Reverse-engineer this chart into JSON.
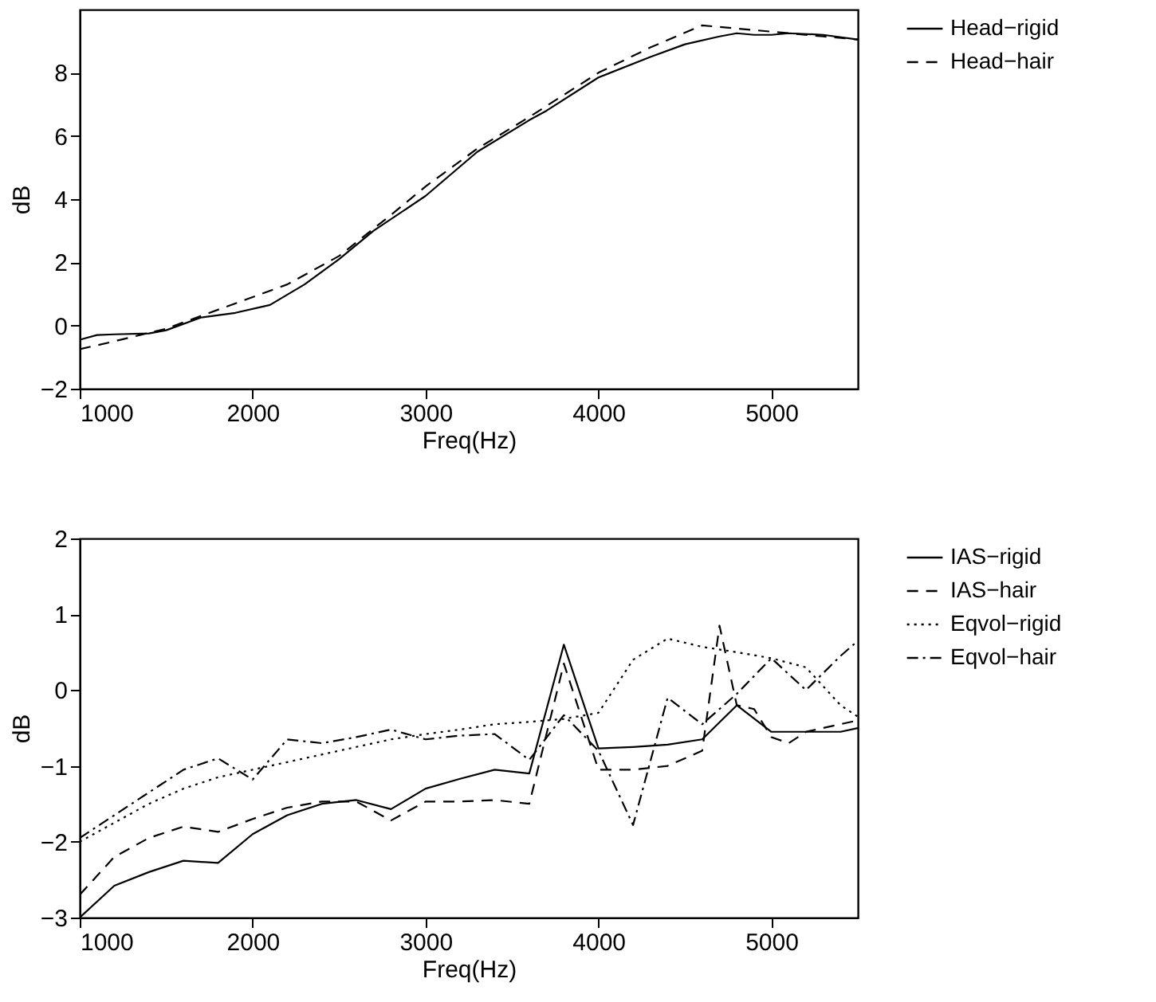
{
  "chart_data": [
    {
      "type": "line",
      "xlabel": "Freq(Hz)",
      "ylabel": "dB",
      "xlim": [
        1000,
        5500
      ],
      "ylim": [
        -2,
        10
      ],
      "xticks": [
        1000,
        2000,
        3000,
        4000,
        5000
      ],
      "yticks": [
        -2,
        0,
        2,
        4,
        6,
        8
      ],
      "grid": false,
      "legend": "right",
      "marker": "none",
      "series": [
        {
          "name": "Head−rigid",
          "color": "#000000",
          "line_style": "solid",
          "x": [
            1000,
            1100,
            1200,
            1400,
            1500,
            1700,
            1900,
            2100,
            2300,
            2500,
            2700,
            3000,
            3300,
            3600,
            3700,
            4000,
            4300,
            4500,
            4700,
            4800,
            4900,
            5000,
            5100,
            5300,
            5500
          ],
          "values": [
            -0.45,
            -0.3,
            -0.28,
            -0.25,
            -0.15,
            0.25,
            0.4,
            0.65,
            1.3,
            2.1,
            3.0,
            4.1,
            5.5,
            6.5,
            6.8,
            7.85,
            8.5,
            8.9,
            9.15,
            9.25,
            9.2,
            9.2,
            9.25,
            9.2,
            9.05
          ]
        },
        {
          "name": "Head−hair",
          "color": "#000000",
          "line_style": "dashed",
          "x": [
            1000,
            1200,
            1500,
            1700,
            2000,
            2200,
            2500,
            2800,
            3000,
            3300,
            3600,
            4000,
            4300,
            4600,
            4800,
            5000,
            5300,
            5500
          ],
          "values": [
            -0.75,
            -0.5,
            -0.1,
            0.3,
            0.9,
            1.3,
            2.2,
            3.5,
            4.4,
            5.6,
            6.6,
            8.0,
            8.8,
            9.5,
            9.4,
            9.3,
            9.15,
            9.05
          ]
        }
      ]
    },
    {
      "type": "line",
      "xlabel": "Freq(Hz)",
      "ylabel": "dB",
      "xlim": [
        1000,
        5500
      ],
      "ylim": [
        -3,
        2
      ],
      "xticks": [
        1000,
        2000,
        3000,
        4000,
        5000
      ],
      "yticks": [
        -3,
        -2,
        -1,
        0,
        1,
        2
      ],
      "grid": false,
      "legend": "right",
      "marker": "none",
      "series": [
        {
          "name": "IAS−rigid",
          "color": "#000000",
          "line_style": "solid",
          "x": [
            1000,
            1200,
            1400,
            1600,
            1800,
            2000,
            2200,
            2400,
            2600,
            2800,
            3000,
            3200,
            3400,
            3600,
            3800,
            4000,
            4200,
            4400,
            4600,
            4800,
            5000,
            5200,
            5400,
            5500
          ],
          "values": [
            -3,
            -2.58,
            -2.4,
            -2.25,
            -2.28,
            -1.9,
            -1.65,
            -1.5,
            -1.45,
            -1.57,
            -1.3,
            -1.17,
            -1.05,
            -1.1,
            0.6,
            -0.77,
            -0.75,
            -0.72,
            -0.65,
            -0.2,
            -0.55,
            -0.55,
            -0.55,
            -0.5
          ]
        },
        {
          "name": "IAS−hair",
          "color": "#000000",
          "line_style": "dashed",
          "x": [
            1000,
            1200,
            1400,
            1600,
            1800,
            2000,
            2200,
            2400,
            2600,
            2800,
            3000,
            3200,
            3400,
            3600,
            3800,
            4000,
            4200,
            4400,
            4600,
            4700,
            4800,
            4900,
            5000,
            5100,
            5200,
            5500
          ],
          "values": [
            -2.7,
            -2.2,
            -1.95,
            -1.8,
            -1.87,
            -1.7,
            -1.55,
            -1.47,
            -1.47,
            -1.72,
            -1.47,
            -1.47,
            -1.45,
            -1.5,
            0.35,
            -1.05,
            -1.05,
            -1.0,
            -0.8,
            0.85,
            -0.2,
            -0.25,
            -0.62,
            -0.7,
            -0.55,
            -0.4
          ]
        },
        {
          "name": "Eqvol−rigid",
          "color": "#000000",
          "line_style": "dotted",
          "x": [
            1000,
            1200,
            1400,
            1600,
            1800,
            2000,
            2200,
            2400,
            2600,
            2800,
            3000,
            3200,
            3400,
            3600,
            3800,
            4000,
            4200,
            4400,
            4600,
            4800,
            5000,
            5200,
            5400,
            5500
          ],
          "values": [
            -2.0,
            -1.75,
            -1.5,
            -1.3,
            -1.15,
            -1.05,
            -0.95,
            -0.85,
            -0.75,
            -0.65,
            -0.58,
            -0.52,
            -0.45,
            -0.42,
            -0.38,
            -0.3,
            0.4,
            0.68,
            0.57,
            0.5,
            0.42,
            0.3,
            -0.2,
            -0.35
          ]
        },
        {
          "name": "Eqvol−hair",
          "color": "#000000",
          "line_style": "dashdot",
          "x": [
            1000,
            1200,
            1400,
            1600,
            1800,
            2000,
            2200,
            2400,
            2600,
            2800,
            3000,
            3200,
            3400,
            3600,
            3800,
            4000,
            4200,
            4400,
            4600,
            4800,
            5000,
            5200,
            5400,
            5500
          ],
          "values": [
            -1.95,
            -1.65,
            -1.35,
            -1.05,
            -0.9,
            -1.18,
            -0.65,
            -0.7,
            -0.62,
            -0.52,
            -0.65,
            -0.6,
            -0.58,
            -0.92,
            -0.33,
            -0.8,
            -1.78,
            -0.1,
            -0.45,
            -0.05,
            0.42,
            0.0,
            0.45,
            0.65
          ]
        }
      ]
    }
  ]
}
